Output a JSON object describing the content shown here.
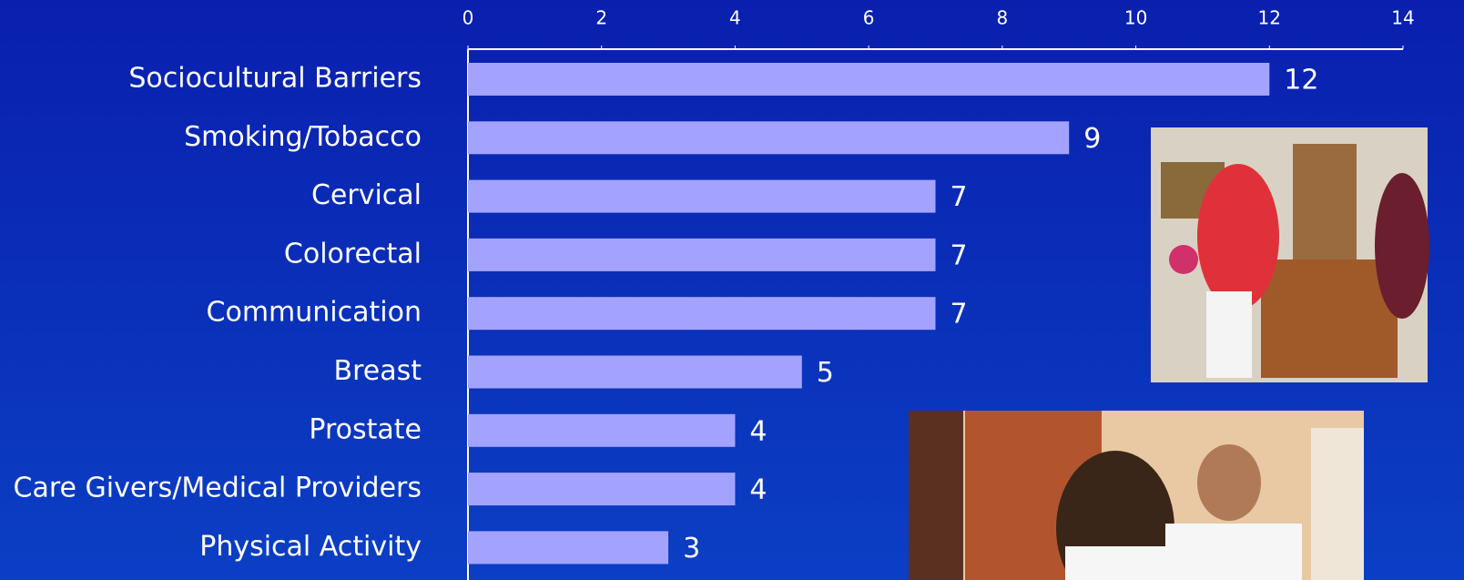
{
  "chart_data": {
    "type": "bar",
    "orientation": "horizontal",
    "categories": [
      "Sociocultural Barriers",
      "Smoking/Tobacco",
      "Cervical",
      "Colorectal",
      "Communication",
      "Breast",
      "Prostate",
      "Care Givers/Medical Providers",
      "Physical Activity"
    ],
    "values": [
      12,
      9,
      7,
      7,
      7,
      5,
      4,
      4,
      3
    ],
    "color": "#a3a3ff",
    "xlim": [
      0,
      14
    ],
    "xticks": [
      0,
      2,
      4,
      6,
      8,
      10,
      12,
      14
    ]
  }
}
